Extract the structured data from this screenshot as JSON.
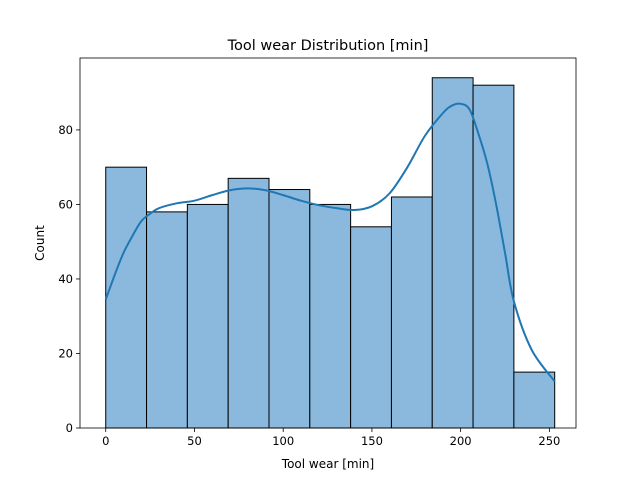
{
  "chart_data": {
    "type": "bar",
    "title": "Tool wear Distribution [min]",
    "xlabel": "Tool wear [min]",
    "ylabel": "Count",
    "xlim": [
      -14.5,
      265
    ],
    "ylim": [
      0,
      99.3
    ],
    "xticks": [
      0,
      50,
      100,
      150,
      200,
      250
    ],
    "yticks": [
      0,
      20,
      40,
      60,
      80
    ],
    "bin_edges": [
      0,
      23,
      46,
      69,
      92,
      115,
      138,
      161,
      184,
      207,
      230,
      253
    ],
    "values": [
      70,
      58,
      60,
      67,
      64,
      60,
      54,
      62,
      94,
      92,
      15
    ],
    "kde": {
      "x": [
        0,
        5,
        10,
        15,
        20,
        25,
        30,
        40,
        50,
        60,
        70,
        80,
        90,
        100,
        110,
        120,
        130,
        140,
        150,
        160,
        170,
        180,
        190,
        195,
        200,
        205,
        210,
        215,
        220,
        225,
        230,
        240,
        253
      ],
      "y": [
        34.5,
        41,
        47,
        51.5,
        55.5,
        57.5,
        59,
        60.3,
        61,
        62.5,
        63.8,
        64.3,
        63.8,
        62.5,
        61,
        59.8,
        59,
        58.5,
        59.5,
        63,
        70,
        78.5,
        84.5,
        86.5,
        87,
        85.5,
        79,
        71,
        60,
        47,
        34,
        21,
        12.5
      ]
    },
    "colors": {
      "bar_fill": "#8bb9dd",
      "bar_edge": "#000000",
      "kde_line": "#1f77b4"
    },
    "grid": false
  }
}
